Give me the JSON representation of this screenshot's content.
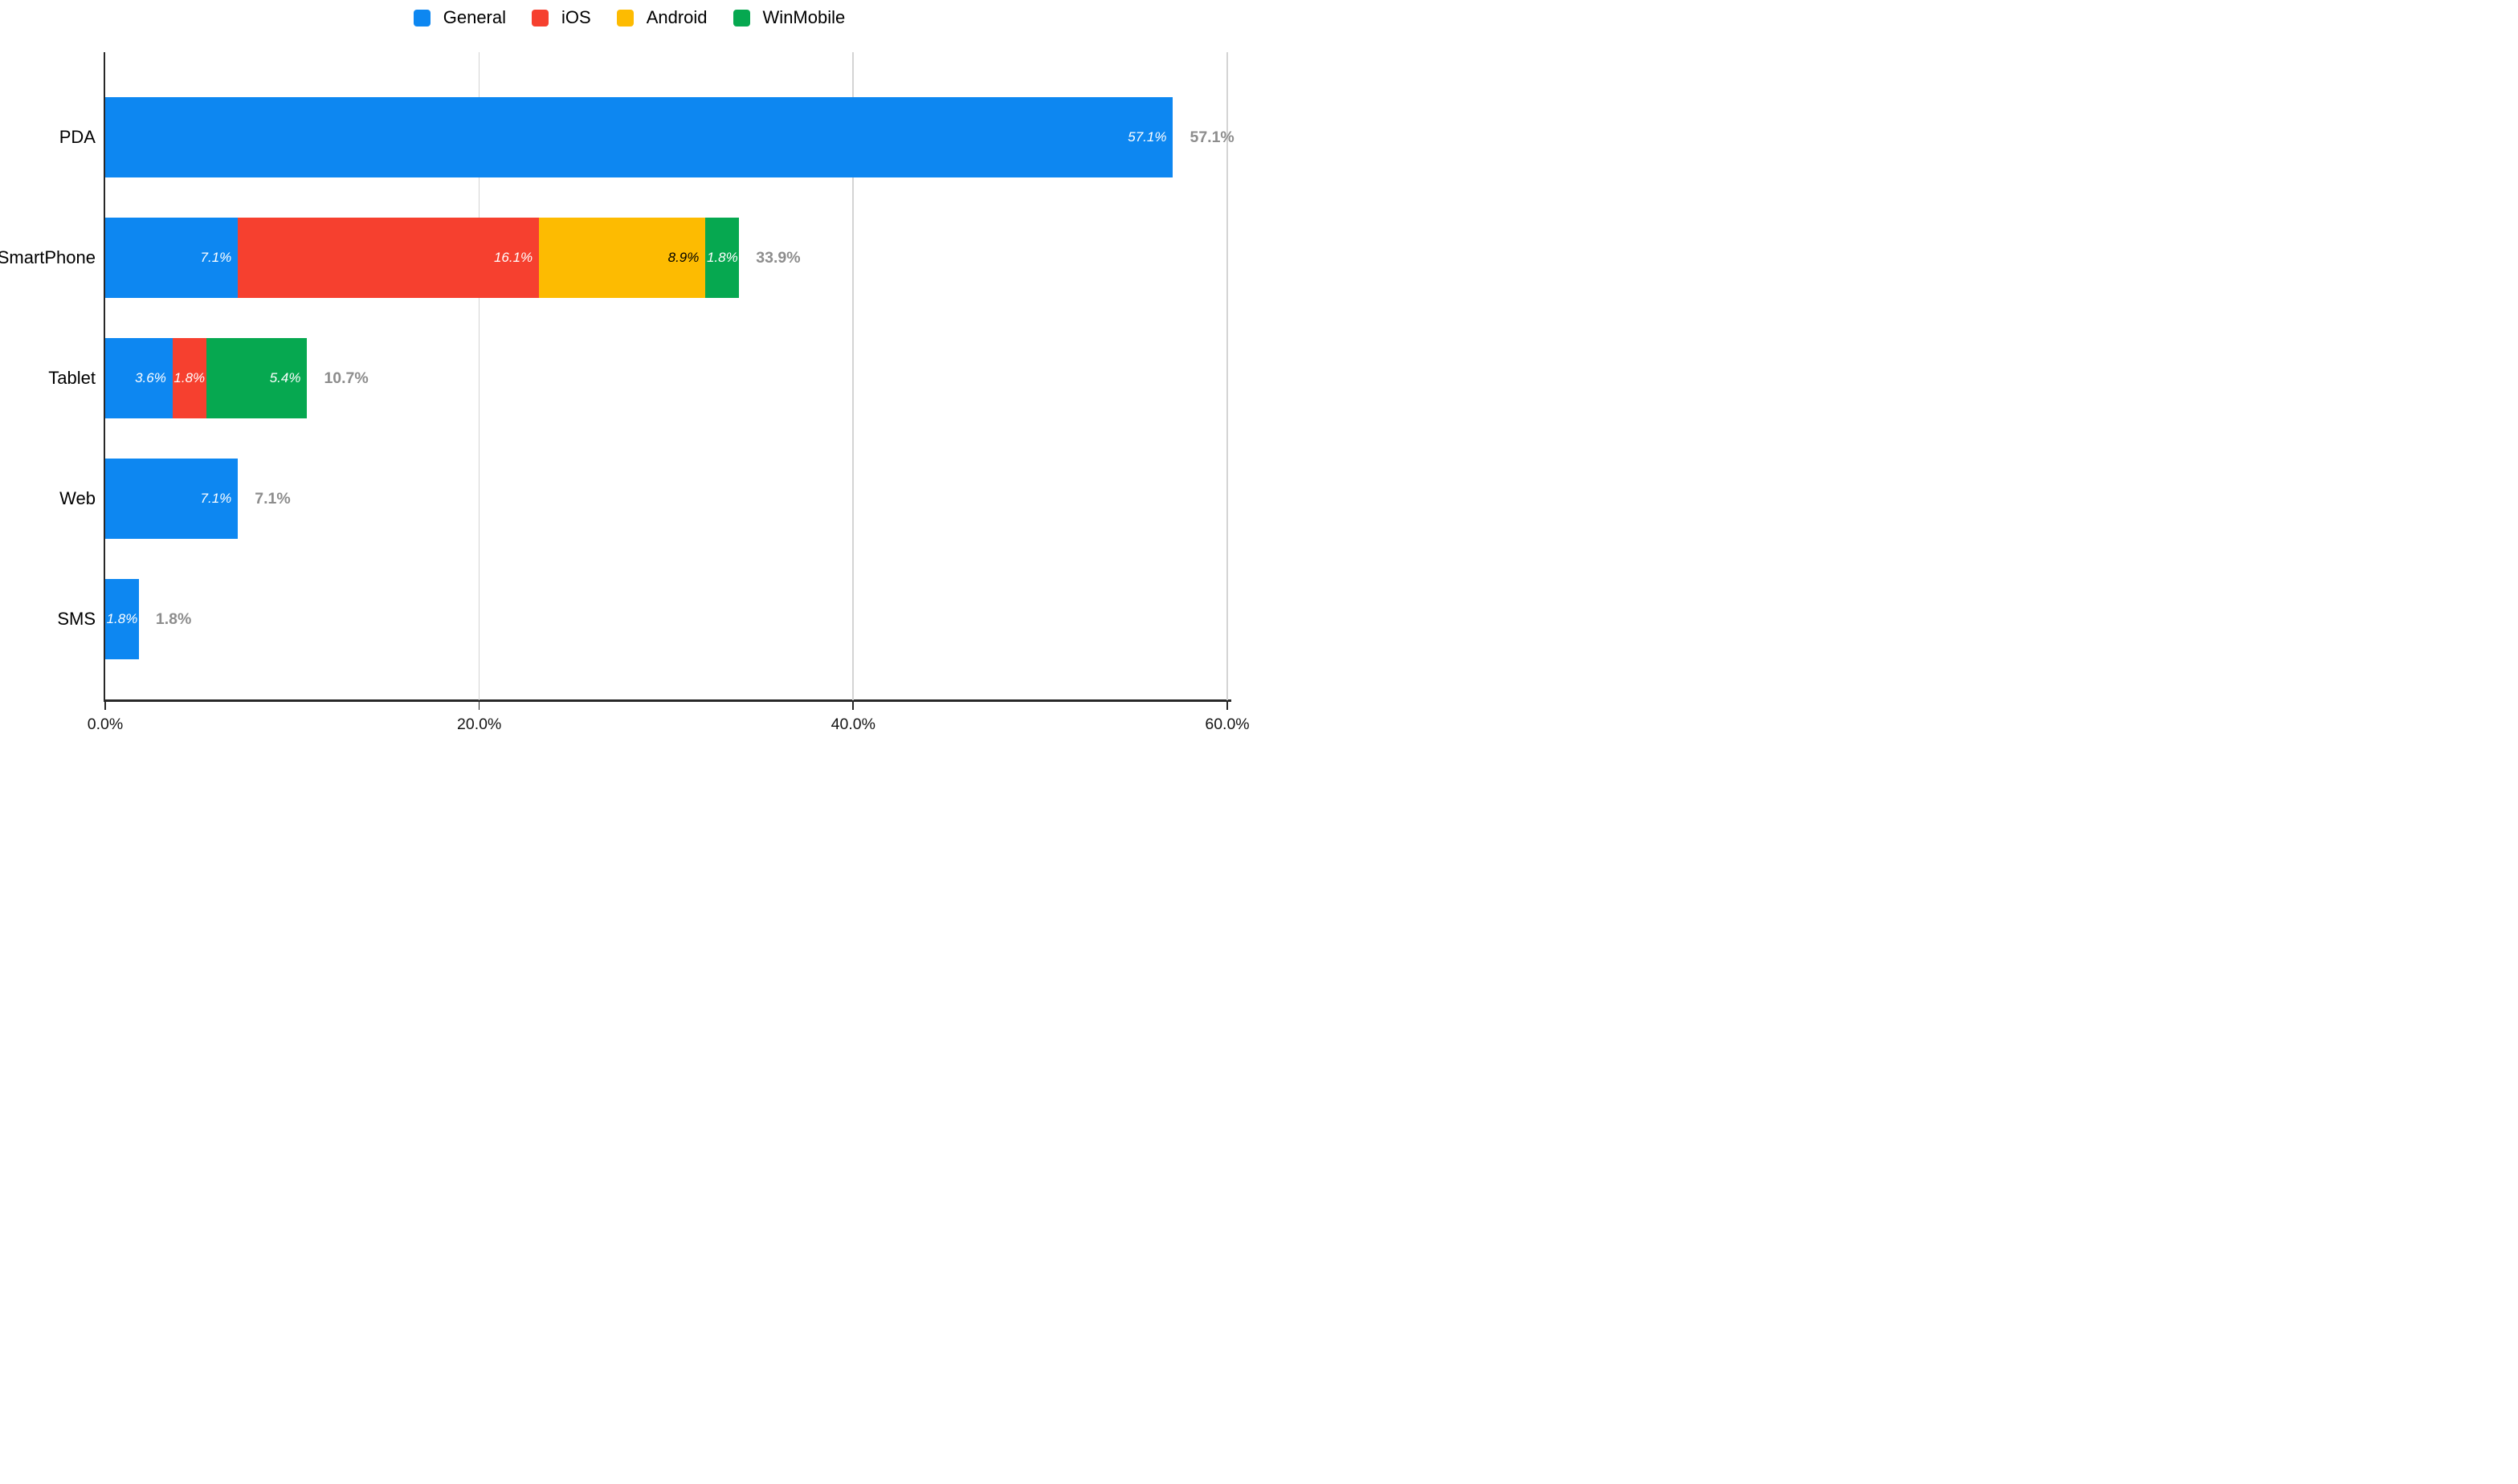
{
  "chart_data": {
    "type": "bar",
    "orientation": "horizontal",
    "stacked": true,
    "grid": true,
    "legend_position": "top",
    "xlim": [
      0,
      60
    ],
    "x_ticks": [
      {
        "value": 0,
        "label": "0.0%"
      },
      {
        "value": 20,
        "label": "20.0%"
      },
      {
        "value": 40,
        "label": "40.0%"
      },
      {
        "value": 60,
        "label": "60.0%"
      }
    ],
    "categories": [
      "PDA",
      "SmartPhone",
      "Tablet",
      "Web",
      "SMS"
    ],
    "series": [
      {
        "name": "General",
        "color": "#0d87f1",
        "label_color": "#ffffff",
        "values": [
          57.1,
          7.1,
          3.6,
          7.1,
          1.8
        ],
        "labels": [
          "57.1%",
          "7.1%",
          "3.6%",
          "7.1%",
          "1.8%"
        ]
      },
      {
        "name": "iOS",
        "color": "#f6402f",
        "label_color": "#ffffff",
        "values": [
          0,
          16.1,
          1.8,
          0,
          0
        ],
        "labels": [
          "",
          "16.1%",
          "1.8%",
          "",
          ""
        ]
      },
      {
        "name": "Android",
        "color": "#fdbb01",
        "label_color": "#000000",
        "values": [
          0,
          8.9,
          0,
          0,
          0
        ],
        "labels": [
          "",
          "8.9%",
          "",
          "",
          ""
        ]
      },
      {
        "name": "WinMobile",
        "color": "#06a850",
        "label_color": "#ffffff",
        "values": [
          0,
          1.8,
          5.4,
          0,
          0
        ],
        "labels": [
          "",
          "1.8%",
          "5.4%",
          "",
          ""
        ]
      }
    ],
    "totals": [
      "57.1%",
      "33.9%",
      "10.7%",
      "7.1%",
      "1.8%"
    ],
    "total_label_color": "#8d8d8d",
    "gridline_color": "#d4d4d4",
    "axis_color": "#282828"
  }
}
